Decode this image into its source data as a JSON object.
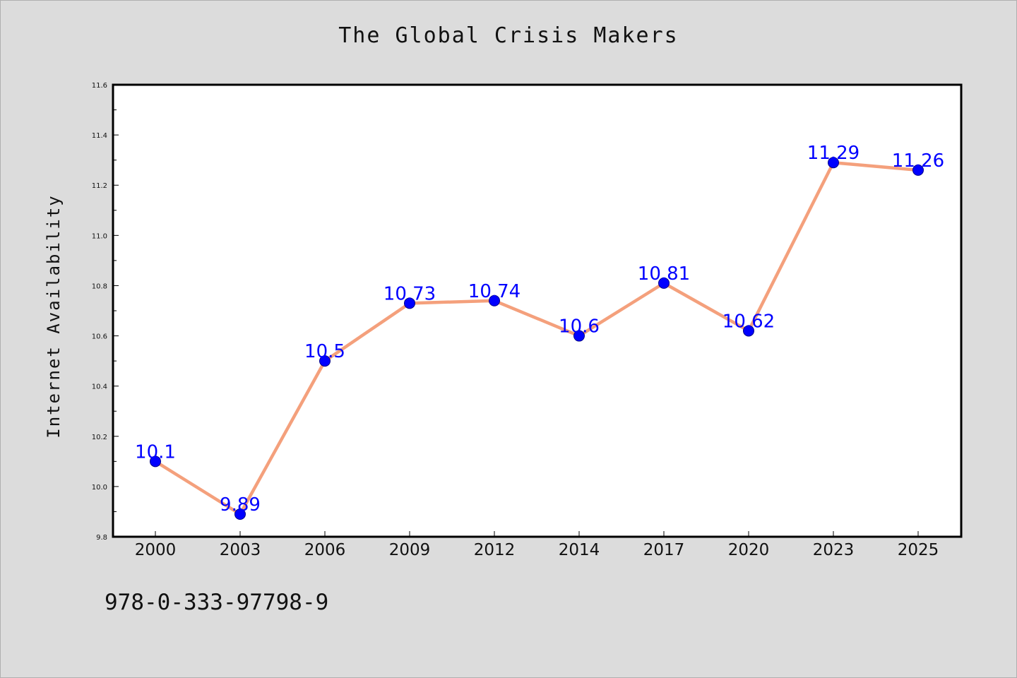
{
  "footer_code": "978-0-333-97798-9",
  "colors": {
    "background": "#dcdcdc",
    "plot_background": "#ffffff",
    "line": "#f4a07c",
    "marker": "#0000ff",
    "marker_edge": "#00008b",
    "data_label": "#0000ff"
  },
  "chart_data": {
    "type": "line",
    "title": "The Global Crisis Makers",
    "xlabel": "",
    "ylabel": "Internet Availability",
    "categories": [
      "2000",
      "2003",
      "2006",
      "2009",
      "2012",
      "2014",
      "2017",
      "2020",
      "2023",
      "2025"
    ],
    "series": [
      {
        "values": [
          10.1,
          9.89,
          10.5,
          10.73,
          10.74,
          10.6,
          10.81,
          10.62,
          11.29,
          11.26
        ],
        "labels": [
          "10.1",
          "9.89",
          "10.5",
          "10.73",
          "10.74",
          "10.6",
          "10.81",
          "10.62",
          "11.29",
          "11.26"
        ]
      }
    ],
    "ylim": [
      9.8,
      11.6
    ],
    "yticks": [
      "9.8",
      "10.0",
      "10.2",
      "10.4",
      "10.6",
      "10.8",
      "11.0",
      "11.2",
      "11.4",
      "11.6"
    ],
    "grid": false,
    "legend": "none"
  }
}
